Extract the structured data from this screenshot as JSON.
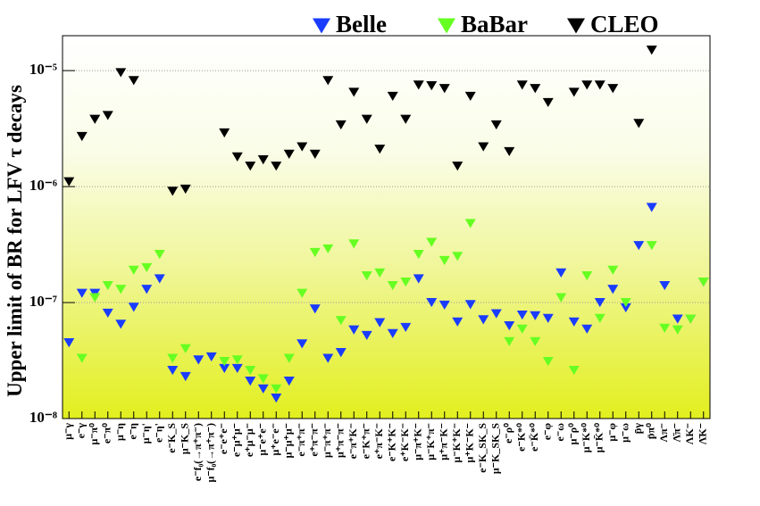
{
  "chart_data": {
    "type": "scatter",
    "ylabel": "Upper limit of BR for LFV τ decays",
    "log_y": true,
    "grid": true,
    "legend": "top",
    "ylim": [
      1e-08,
      2e-05
    ],
    "yticks": [
      {
        "value": 1e-08,
        "label": "10⁻⁸"
      },
      {
        "value": 1e-07,
        "label": "10⁻⁷"
      },
      {
        "value": 1e-06,
        "label": "10⁻⁶"
      },
      {
        "value": 1e-05,
        "label": "10⁻⁵"
      }
    ],
    "categories": [
      "μ⁻γ",
      "e⁻γ",
      "μ⁻π⁰",
      "e⁻π⁰",
      "μ⁻η",
      "e⁻η",
      "μ⁻η'",
      "e⁻η'",
      "e⁻K_S",
      "μ⁻K_S",
      "e⁻f₀(→π⁺π⁻)",
      "μ⁻f₀(→π⁺π⁻)",
      "e⁻e⁺e⁻",
      "e⁻μ⁺μ⁻",
      "e⁺μ⁻μ⁻",
      "μ⁻e⁺e⁻",
      "μ⁺e⁻e⁻",
      "μ⁻μ⁺μ⁻",
      "e⁻π⁺π⁻",
      "e⁺π⁻π⁻",
      "μ⁻π⁺π⁻",
      "μ⁺π⁻π⁻",
      "e⁻π⁺K⁻",
      "e⁻K⁺π⁻",
      "e⁺π⁻K⁻",
      "e⁻K⁺K⁻",
      "e⁺K⁻K⁻",
      "μ⁻π⁺K⁻",
      "μ⁻K⁺π⁻",
      "μ⁺π⁻K⁻",
      "μ⁻K⁺K⁻",
      "μ⁺K⁻K⁻",
      "e⁻K_SK_S",
      "μ⁻K_SK_S",
      "e⁻ρ⁰",
      "e⁻K*⁰",
      "e⁻K̄*⁰",
      "e⁻φ",
      "e⁻ω",
      "μ⁻ρ⁰",
      "μ⁻K*⁰",
      "μ⁻K̄*⁰",
      "μ⁻φ",
      "μ⁻ω",
      "p̄γ",
      "p̄π⁰",
      "Λπ⁻",
      "Λ̄π⁻",
      "ΛK⁻",
      "Λ̄K⁻"
    ],
    "series": [
      {
        "name": "Belle",
        "color": "#1a3cff",
        "values": [
          4.5e-08,
          1.2e-07,
          1.2e-07,
          8.1e-08,
          6.5e-08,
          9.1e-08,
          1.3e-07,
          1.6e-07,
          2.6e-08,
          2.3e-08,
          3.2e-08,
          3.4e-08,
          2.7e-08,
          2.7e-08,
          2.1e-08,
          1.8e-08,
          1.5e-08,
          2.1e-08,
          4.4e-08,
          8.8e-08,
          3.3e-08,
          3.7e-08,
          5.8e-08,
          5.2e-08,
          6.7e-08,
          5.4e-08,
          6.1e-08,
          1.6e-07,
          1e-07,
          9.5e-08,
          6.8e-08,
          9.6e-08,
          7.1e-08,
          8e-08,
          6.3e-08,
          7.8e-08,
          7.7e-08,
          7.3e-08,
          1.8e-07,
          6.8e-08,
          5.9e-08,
          1e-07,
          1.3e-07,
          9e-08,
          3.1e-07,
          6.6e-07,
          1.4e-07,
          7.2e-08,
          7.2e-08,
          1.5e-07
        ]
      },
      {
        "name": "BaBar",
        "color": "#66ff22",
        "values": [
          null,
          3.3e-08,
          1.1e-07,
          1.4e-07,
          1.3e-07,
          1.9e-07,
          2e-07,
          2.6e-07,
          3.3e-08,
          4e-08,
          null,
          null,
          3.1e-08,
          3.2e-08,
          2.6e-08,
          2.2e-08,
          1.8e-08,
          3.3e-08,
          1.2e-07,
          2.7e-07,
          2.9e-07,
          7e-08,
          3.2e-07,
          1.7e-07,
          1.8e-07,
          1.4e-07,
          1.5e-07,
          2.6e-07,
          3.3e-07,
          2.3e-07,
          2.5e-07,
          4.8e-07,
          null,
          null,
          4.6e-08,
          5.9e-08,
          4.6e-08,
          3.1e-08,
          1.1e-07,
          2.6e-08,
          1.7e-07,
          7.3e-08,
          1.9e-07,
          1e-07,
          null,
          3.1e-07,
          6e-08,
          5.8e-08,
          7.2e-08,
          1.5e-07
        ]
      },
      {
        "name": "CLEO",
        "color": "#000000",
        "values": [
          1.1e-06,
          2.7e-06,
          3.8e-06,
          4.1e-06,
          9.6e-06,
          8.2e-06,
          null,
          null,
          9.1e-07,
          9.5e-07,
          null,
          null,
          2.9e-06,
          1.8e-06,
          1.5e-06,
          1.7e-06,
          1.5e-06,
          1.9e-06,
          2.2e-06,
          1.9e-06,
          8.2e-06,
          3.4e-06,
          6.5e-06,
          3.8e-06,
          2.1e-06,
          6e-06,
          3.8e-06,
          7.5e-06,
          7.4e-06,
          7e-06,
          1.5e-06,
          6e-06,
          2.2e-06,
          3.4e-06,
          2e-06,
          7.5e-06,
          7e-06,
          5.3e-06,
          null,
          6.5e-06,
          7.5e-06,
          7.5e-06,
          7e-06,
          null,
          3.5e-06,
          1.5e-05,
          null,
          null,
          null,
          null
        ]
      }
    ]
  }
}
